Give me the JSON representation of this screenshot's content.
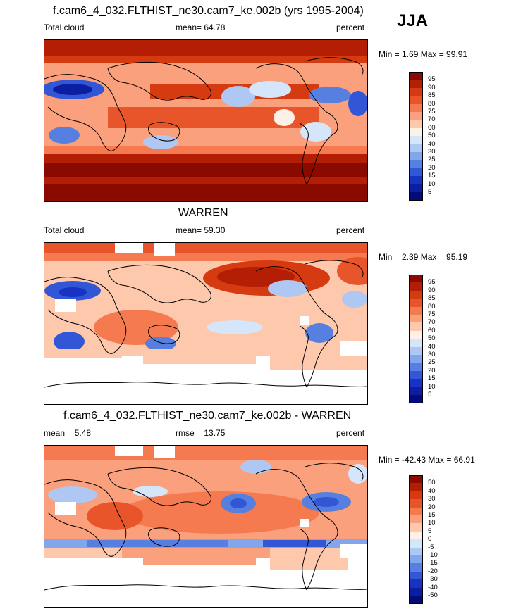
{
  "season": "JJA",
  "panels": [
    {
      "title": "f.cam6_4_032.FLTHIST_ne30.cam7_ke.002b (yrs 1995-2004)",
      "left_label": "Total cloud",
      "mid_label": "mean=  64.78",
      "right_label": "percent",
      "minmax": "Min =   1.69 Max =  99.91",
      "levels": [
        "95",
        "90",
        "85",
        "80",
        "75",
        "70",
        "60",
        "50",
        "40",
        "30",
        "25",
        "20",
        "15",
        "10",
        "5"
      ],
      "colors": [
        "#8b0a00",
        "#b41e04",
        "#d63a10",
        "#e8552a",
        "#f57a50",
        "#fba07c",
        "#fdc8ac",
        "#fdf0e6",
        "#d6e6fa",
        "#aec8f3",
        "#82a6ec",
        "#567fe0",
        "#3257d6",
        "#1633c4",
        "#0c1ea0",
        "#050a78"
      ]
    },
    {
      "title": "WARREN",
      "left_label": "Total cloud",
      "mid_label": "mean=  59.30",
      "right_label": "percent",
      "minmax": "Min =   2.39 Max =  95.19",
      "levels": [
        "95",
        "90",
        "85",
        "80",
        "75",
        "70",
        "60",
        "50",
        "40",
        "30",
        "25",
        "20",
        "15",
        "10",
        "5"
      ],
      "colors": [
        "#8b0a00",
        "#b41e04",
        "#d63a10",
        "#e8552a",
        "#f57a50",
        "#fba07c",
        "#fdc8ac",
        "#fdf0e6",
        "#d6e6fa",
        "#aec8f3",
        "#82a6ec",
        "#567fe0",
        "#3257d6",
        "#1633c4",
        "#0c1ea0",
        "#050a78"
      ]
    },
    {
      "title": "f.cam6_4_032.FLTHIST_ne30.cam7_ke.002b - WARREN",
      "left_label": "mean =   5.48",
      "mid_label": "rmse =  13.75",
      "right_label": "percent",
      "minmax": "Min = -42.43 Max =  66.91",
      "levels": [
        "50",
        "40",
        "30",
        "20",
        "15",
        "10",
        "5",
        "0",
        "-5",
        "-10",
        "-15",
        "-20",
        "-30",
        "-40",
        "-50"
      ],
      "colors": [
        "#8b0a00",
        "#b41e04",
        "#d63a10",
        "#e8552a",
        "#f57a50",
        "#fba07c",
        "#fdc8ac",
        "#fdf0e6",
        "#d6e6fa",
        "#aec8f3",
        "#82a6ec",
        "#567fe0",
        "#3257d6",
        "#1633c4",
        "#0c1ea0",
        "#050a78"
      ]
    }
  ]
}
